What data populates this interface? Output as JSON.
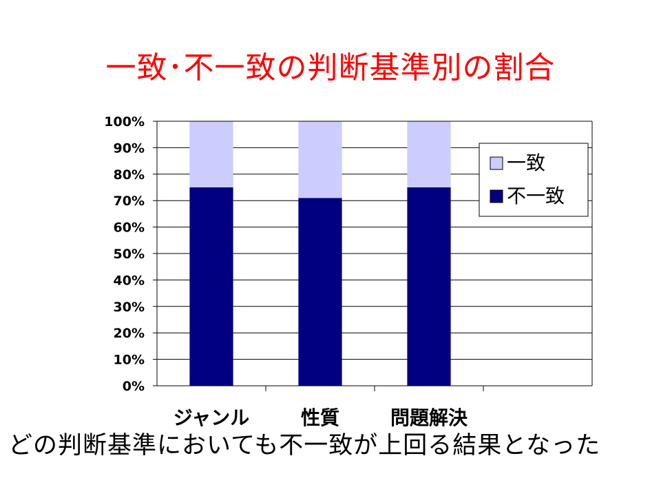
{
  "slide": {
    "title": "一致･不一致の判断基準別の割合",
    "caption": "どの判断基準においても不一致が上回る結果となった"
  },
  "chart_data": {
    "type": "bar",
    "stacked": true,
    "percent": true,
    "categories": [
      "ジャンル",
      "性質",
      "問題解決"
    ],
    "series": [
      {
        "name": "不一致",
        "values": [
          75,
          71,
          75
        ],
        "color": "#000080"
      },
      {
        "name": "一致",
        "values": [
          25,
          29,
          25
        ],
        "color": "#ccccff"
      }
    ],
    "yticks": [
      "0%",
      "10%",
      "20%",
      "30%",
      "40%",
      "50%",
      "60%",
      "70%",
      "80%",
      "90%",
      "100%"
    ],
    "ylim": [
      0,
      100
    ],
    "grid": true,
    "legend": {
      "position": "top-right",
      "order": [
        "一致",
        "不一致"
      ]
    },
    "plot_background": "#ffffff"
  }
}
